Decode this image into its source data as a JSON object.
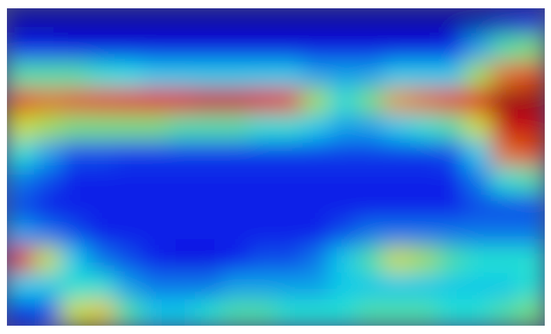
{
  "chart_data": {
    "type": "heatmap",
    "tick_labels": false,
    "zlim": [
      0,
      1
    ],
    "cells": [
      [
        0.05,
        0.05,
        0.05,
        0.05,
        0.05,
        0.05,
        0.05,
        0.05,
        0.05,
        0.05,
        0.05,
        0.05,
        0.05,
        0.05,
        0.05,
        0.05,
        0.05,
        0.05,
        0.08,
        0.1
      ],
      [
        0.15,
        0.15,
        0.12,
        0.12,
        0.12,
        0.12,
        0.12,
        0.12,
        0.12,
        0.12,
        0.12,
        0.12,
        0.12,
        0.12,
        0.12,
        0.12,
        0.15,
        0.3,
        0.45,
        0.5
      ],
      [
        0.45,
        0.45,
        0.45,
        0.4,
        0.38,
        0.35,
        0.35,
        0.35,
        0.35,
        0.35,
        0.35,
        0.3,
        0.3,
        0.3,
        0.35,
        0.35,
        0.35,
        0.55,
        0.75,
        0.8
      ],
      [
        0.8,
        0.75,
        0.78,
        0.8,
        0.82,
        0.85,
        0.88,
        0.9,
        0.9,
        0.88,
        0.8,
        0.55,
        0.4,
        0.5,
        0.7,
        0.75,
        0.8,
        0.85,
        0.95,
        0.95
      ],
      [
        0.6,
        0.55,
        0.5,
        0.5,
        0.5,
        0.5,
        0.45,
        0.45,
        0.45,
        0.4,
        0.4,
        0.35,
        0.3,
        0.3,
        0.35,
        0.4,
        0.45,
        0.6,
        0.9,
        0.9
      ],
      [
        0.4,
        0.3,
        0.2,
        0.2,
        0.18,
        0.18,
        0.18,
        0.18,
        0.18,
        0.18,
        0.18,
        0.18,
        0.18,
        0.18,
        0.18,
        0.18,
        0.2,
        0.35,
        0.75,
        0.8
      ],
      [
        0.25,
        0.2,
        0.15,
        0.15,
        0.15,
        0.15,
        0.15,
        0.15,
        0.15,
        0.15,
        0.15,
        0.15,
        0.15,
        0.15,
        0.15,
        0.15,
        0.15,
        0.25,
        0.4,
        0.45
      ],
      [
        0.2,
        0.15,
        0.15,
        0.15,
        0.15,
        0.15,
        0.15,
        0.15,
        0.15,
        0.15,
        0.15,
        0.15,
        0.15,
        0.15,
        0.15,
        0.15,
        0.15,
        0.2,
        0.2,
        0.2
      ],
      [
        0.3,
        0.25,
        0.2,
        0.15,
        0.15,
        0.15,
        0.15,
        0.15,
        0.15,
        0.15,
        0.15,
        0.15,
        0.2,
        0.25,
        0.25,
        0.25,
        0.25,
        0.25,
        0.25,
        0.25
      ],
      [
        0.85,
        0.6,
        0.35,
        0.25,
        0.2,
        0.15,
        0.12,
        0.12,
        0.15,
        0.2,
        0.2,
        0.25,
        0.35,
        0.45,
        0.6,
        0.55,
        0.45,
        0.4,
        0.4,
        0.4
      ],
      [
        0.35,
        0.35,
        0.4,
        0.4,
        0.3,
        0.25,
        0.25,
        0.25,
        0.3,
        0.3,
        0.3,
        0.3,
        0.35,
        0.35,
        0.35,
        0.35,
        0.35,
        0.35,
        0.35,
        0.4
      ],
      [
        0.15,
        0.2,
        0.6,
        0.65,
        0.45,
        0.35,
        0.35,
        0.4,
        0.45,
        0.45,
        0.4,
        0.4,
        0.4,
        0.45,
        0.45,
        0.45,
        0.4,
        0.4,
        0.45,
        0.5
      ]
    ]
  }
}
